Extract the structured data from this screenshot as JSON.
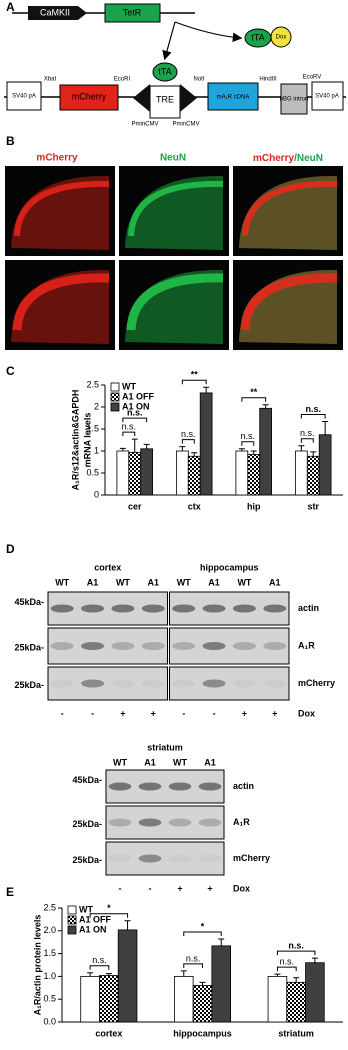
{
  "panel_labels": [
    "A",
    "B",
    "C",
    "D",
    "E"
  ],
  "construct": {
    "promoter": "CaMKII",
    "driver": "TetR",
    "tta": "tTA",
    "dox": "Dox",
    "elements": [
      "SV40 pA",
      "mCherry",
      "TRE",
      "mA₁R cDNA",
      "hBG intron",
      "SV40 pA"
    ],
    "sites": [
      "XbaI",
      "EcoRI",
      "NotI",
      "HindIII",
      "EcoRV"
    ],
    "promoters": [
      "PminCMV",
      "PminCMV"
    ]
  },
  "imaging": {
    "red_label": "mCherry",
    "green_label": "NeuN",
    "merge_label": [
      "mCherry",
      "/NeuN"
    ]
  },
  "chart_data": [
    {
      "type": "bar",
      "y_label": [
        "A₁R/s12&actin&GAPDH",
        "mRNA levels"
      ],
      "categories": [
        "cer",
        "ctx",
        "hip",
        "str"
      ],
      "series": [
        {
          "name": "WT",
          "color": "#ffffff",
          "values": [
            1.0,
            1.0,
            1.0,
            1.0
          ],
          "errors": [
            0.06,
            0.1,
            0.05,
            0.12
          ]
        },
        {
          "name": "A1 OFF",
          "color": "#000000",
          "pattern": "checker",
          "values": [
            0.97,
            0.88,
            0.92,
            0.88
          ],
          "errors": [
            0.3,
            0.08,
            0.08,
            0.1
          ]
        },
        {
          "name": "A1 ON",
          "color": "#404040",
          "values": [
            1.05,
            2.32,
            1.97,
            1.37
          ],
          "errors": [
            0.1,
            0.13,
            0.08,
            0.3
          ]
        }
      ],
      "significance": [
        [
          "n.s.",
          "n.s."
        ],
        [
          "n.s.",
          "**"
        ],
        [
          "n.s.",
          "**"
        ],
        [
          "n.s.",
          "n.s."
        ]
      ],
      "ylim": [
        0,
        2.5
      ],
      "yticks": [
        0,
        0.5,
        1,
        1.5,
        2,
        2.5
      ]
    },
    {
      "type": "bar",
      "y_label": [
        "A₁R/actin protein levels"
      ],
      "categories": [
        "cortex",
        "hippocampus",
        "striatum"
      ],
      "series": [
        {
          "name": "WT",
          "color": "#ffffff",
          "values": [
            1.0,
            1.0,
            1.0
          ],
          "errors": [
            0.08,
            0.12,
            0.05
          ]
        },
        {
          "name": "A1 OFF",
          "color": "#000000",
          "pattern": "checker",
          "values": [
            1.02,
            0.8,
            0.87
          ],
          "errors": [
            0.04,
            0.07,
            0.1
          ]
        },
        {
          "name": "A1 ON",
          "color": "#404040",
          "values": [
            2.02,
            1.67,
            1.3
          ],
          "errors": [
            0.2,
            0.15,
            0.1
          ]
        }
      ],
      "significance": [
        [
          "n.s.",
          "*"
        ],
        [
          "n.s.",
          "*"
        ],
        [
          "n.s.",
          "n.s."
        ]
      ],
      "ylim": [
        0,
        2.5
      ],
      "yticks": [
        {
          "value": 0,
          "label": "0.0"
        },
        0.5,
        {
          "value": 1,
          "label": "1.0"
        },
        1.5,
        {
          "value": 2,
          "label": "2.0"
        },
        2.5
      ]
    }
  ],
  "blots": [
    {
      "tissues": [
        "cortex",
        "hippocampus"
      ],
      "lanes": [
        "WT",
        "A1",
        "WT",
        "A1",
        "WT",
        "A1",
        "WT",
        "A1"
      ],
      "rows": [
        "actin",
        "A₁R",
        "mCherry"
      ],
      "sizes": [
        "45kDa-",
        "25kDa-",
        "25kDa-"
      ],
      "dox": [
        "-",
        "-",
        "+",
        "+",
        "-",
        "-",
        "+",
        "+"
      ],
      "dox_label": "Dox"
    },
    {
      "tissues": [
        "striatum"
      ],
      "lanes": [
        "WT",
        "A1",
        "WT",
        "A1"
      ],
      "rows": [
        "actin",
        "A₁R",
        "mCherry"
      ],
      "sizes": [
        "45kDa-",
        "25kDa-",
        "25kDa-"
      ],
      "dox": [
        "-",
        "-",
        "+",
        "+"
      ],
      "dox_label": "Dox"
    }
  ]
}
